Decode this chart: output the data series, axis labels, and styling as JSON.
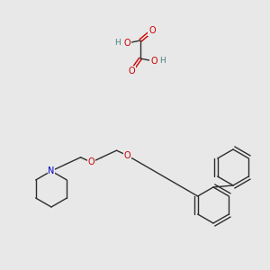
{
  "bg_color": "#e8e8e8",
  "bond_color": "#2d2d2d",
  "atom_colors": {
    "O": "#cc0000",
    "N": "#0000cc",
    "H": "#4a8080",
    "C": "#2d2d2d"
  },
  "font_size_atom": 7.0,
  "font_size_h": 6.5,
  "lw": 1.0
}
